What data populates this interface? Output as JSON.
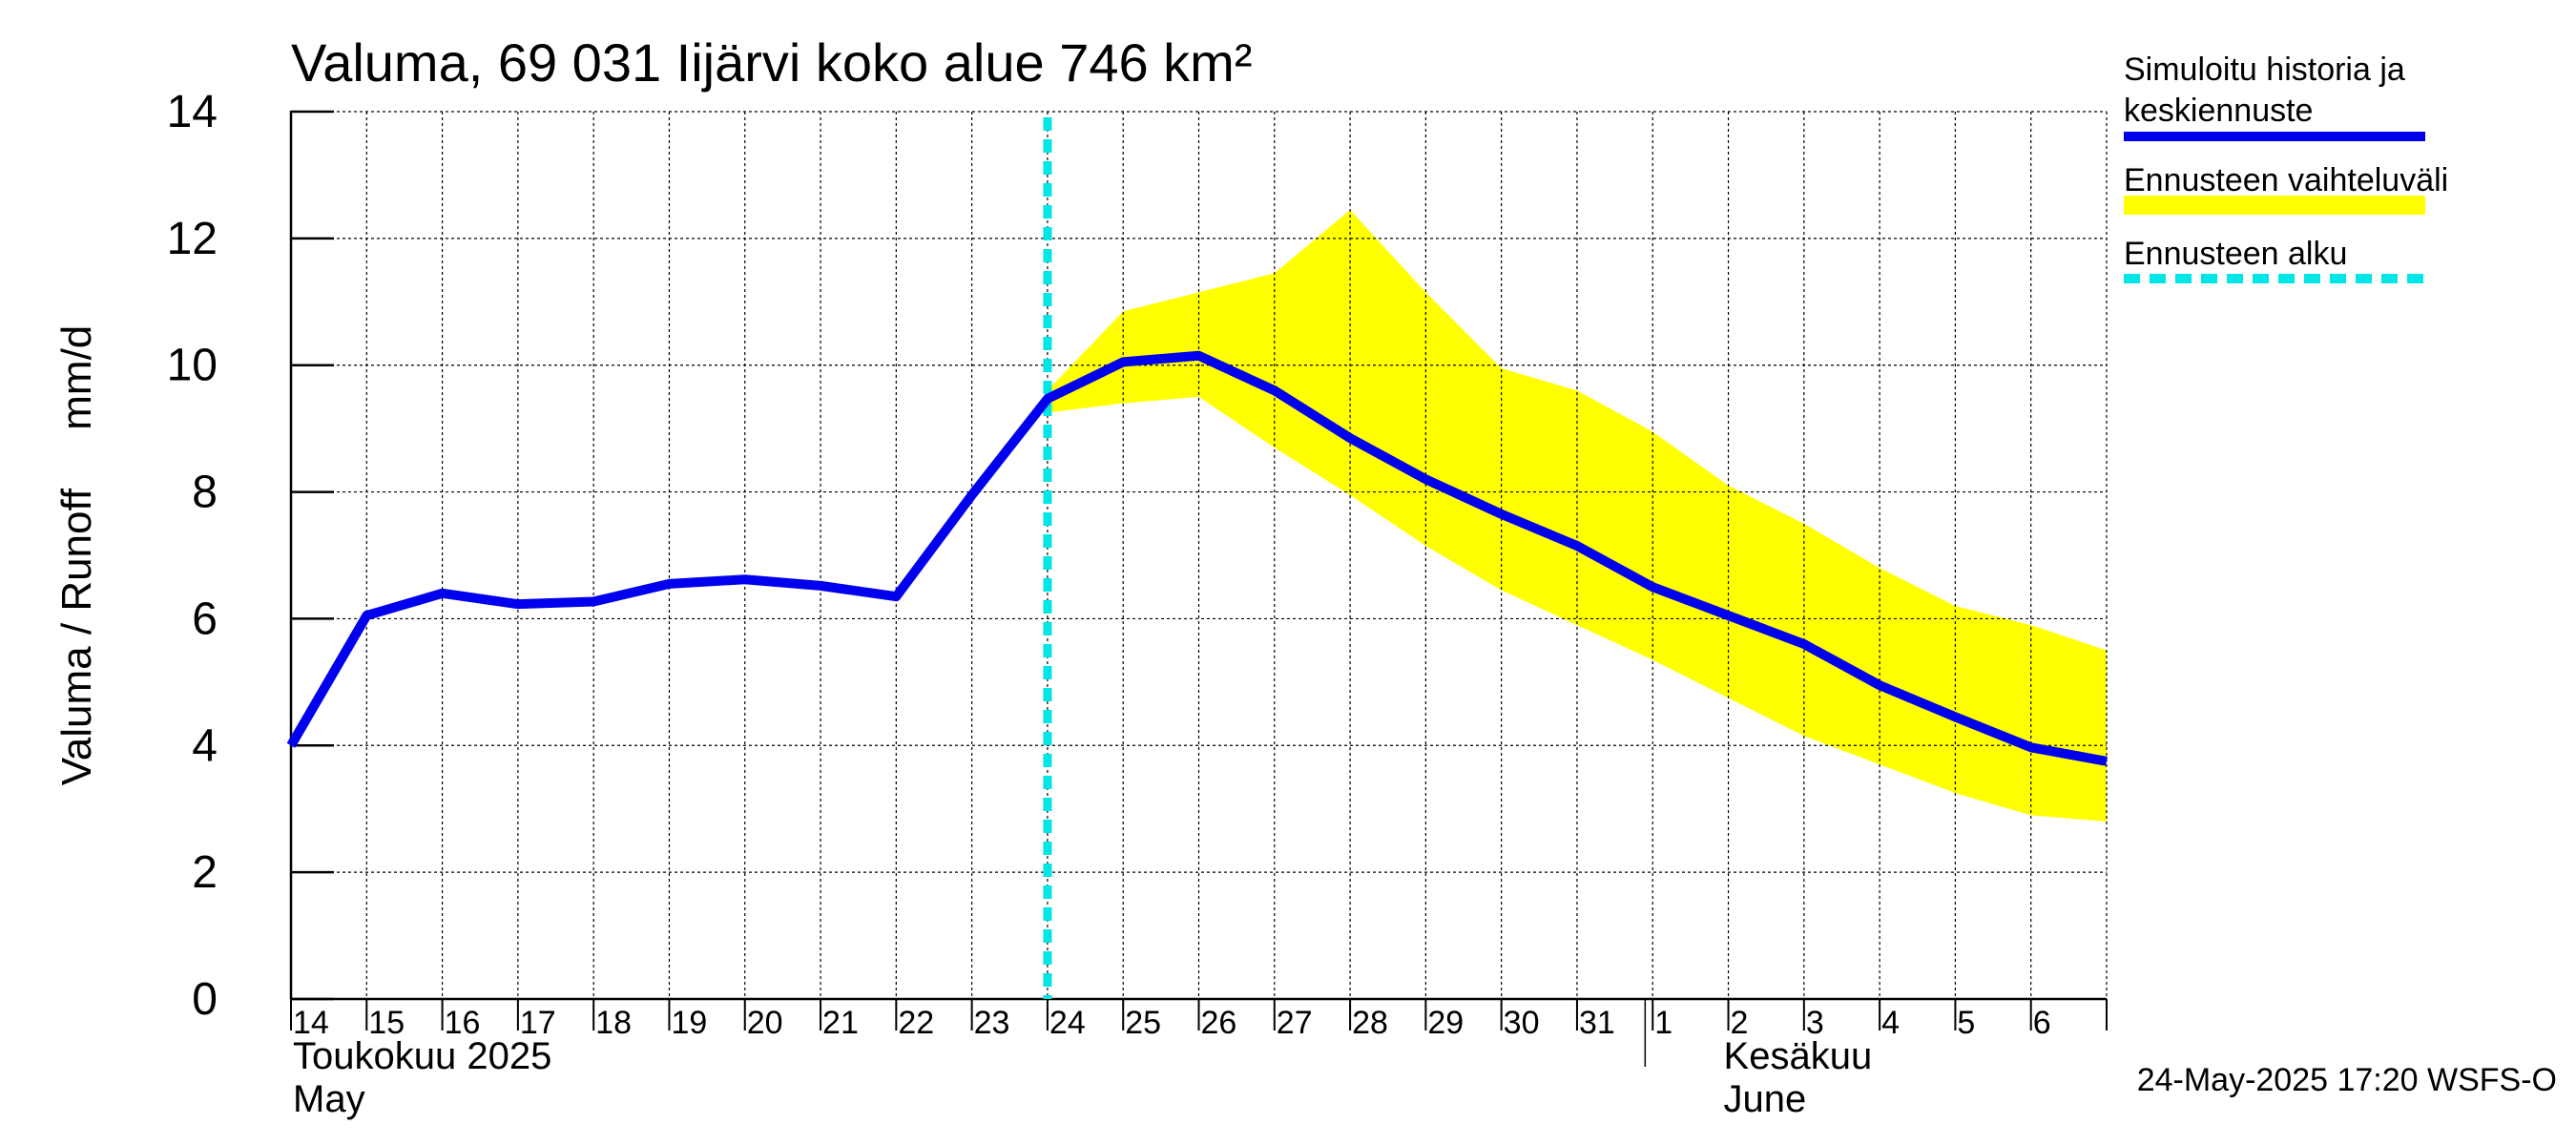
{
  "chart_data": {
    "type": "line",
    "title": "Valuma, 69 031 Iijärvi koko alue 746 km²",
    "ylabel": "Valuma / Runoff     mm/d",
    "xlabel": "",
    "ylim": [
      0,
      14
    ],
    "yticks": [
      0,
      2,
      4,
      6,
      8,
      10,
      12,
      14
    ],
    "grid": true,
    "x_tick_labels": [
      "14",
      "15",
      "16",
      "17",
      "18",
      "19",
      "20",
      "21",
      "22",
      "23",
      "24",
      "25",
      "26",
      "27",
      "28",
      "29",
      "30",
      "31",
      "1",
      "2",
      "3",
      "4",
      "5",
      "6"
    ],
    "month_labels": [
      {
        "fi": "Toukokuu  2025",
        "en": "May"
      },
      {
        "fi": "Kesäkuu",
        "en": "June"
      }
    ],
    "forecast_start_index": 10,
    "series": [
      {
        "name": "Simuloitu historia ja keskiennuste",
        "color": "#0000ee",
        "values": [
          4.0,
          6.05,
          6.4,
          6.23,
          6.27,
          6.55,
          6.62,
          6.52,
          6.35,
          7.95,
          9.47,
          10.05,
          10.15,
          9.6,
          8.85,
          8.2,
          7.65,
          7.15,
          6.5,
          6.05,
          5.6,
          4.95,
          4.45,
          3.97,
          3.75
        ]
      }
    ],
    "band": {
      "name": "Ennusteen vaihteluväli",
      "color": "#ffff00",
      "start_index": 10,
      "upper": [
        9.6,
        10.85,
        11.15,
        11.45,
        12.45,
        11.15,
        9.95,
        9.6,
        8.95,
        8.1,
        7.5,
        6.8,
        6.2,
        5.9,
        5.5
      ],
      "lower": [
        9.25,
        9.4,
        9.5,
        8.7,
        7.95,
        7.15,
        6.45,
        5.9,
        5.35,
        4.75,
        4.15,
        3.7,
        3.25,
        2.9,
        2.8
      ]
    },
    "legend": [
      {
        "label_lines": [
          "Simuloitu historia ja",
          "keskiennuste"
        ],
        "style": "line",
        "color": "#0000ee"
      },
      {
        "label_lines": [
          "Ennusteen vaihteluväli"
        ],
        "style": "band",
        "color": "#ffff00"
      },
      {
        "label_lines": [
          "Ennusteen alku"
        ],
        "style": "dashed",
        "color": "#00e5e5"
      }
    ],
    "legend_position": "right",
    "timestamp": "24-May-2025 17:20 WSFS-O"
  }
}
